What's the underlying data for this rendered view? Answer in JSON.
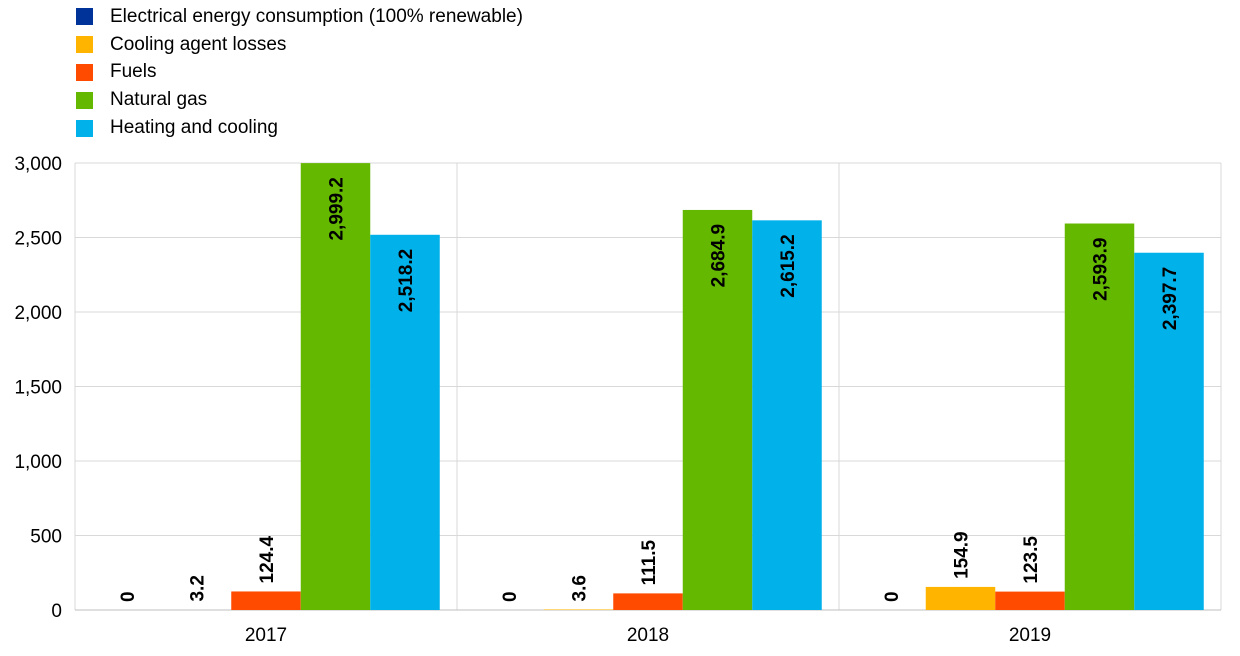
{
  "chart_data": {
    "type": "bar",
    "categories": [
      "2017",
      "2018",
      "2019"
    ],
    "series": [
      {
        "name": "Electrical energy consumption (100% renewable)",
        "color": "#003399",
        "values": [
          0,
          0,
          0
        ],
        "labels": [
          "0",
          "0",
          "0"
        ]
      },
      {
        "name": "Cooling agent losses",
        "color": "#FFB400",
        "values": [
          3.2,
          3.6,
          154.9
        ],
        "labels": [
          "3.2",
          "3.6",
          "154.9"
        ]
      },
      {
        "name": "Fuels",
        "color": "#FF4B00",
        "values": [
          124.4,
          111.5,
          123.5
        ],
        "labels": [
          "124.4",
          "111.5",
          "123.5"
        ]
      },
      {
        "name": "Natural gas",
        "color": "#65B800",
        "values": [
          2999.2,
          2684.9,
          2593.9
        ],
        "labels": [
          "2,999.2",
          "2,684.9",
          "2,593.9"
        ]
      },
      {
        "name": "Heating and cooling",
        "color": "#00B1EA",
        "values": [
          2518.2,
          2615.2,
          2397.7
        ],
        "labels": [
          "2,518.2",
          "2,615.2",
          "2,397.7"
        ]
      }
    ],
    "yticks": [
      0,
      500,
      1000,
      1500,
      2000,
      2500,
      3000
    ],
    "ytick_labels": [
      "0",
      "500",
      "1,000",
      "1,500",
      "2,000",
      "2,500",
      "3,000"
    ],
    "ylim": [
      0,
      3000
    ],
    "grid": true,
    "legend": "top-left"
  }
}
